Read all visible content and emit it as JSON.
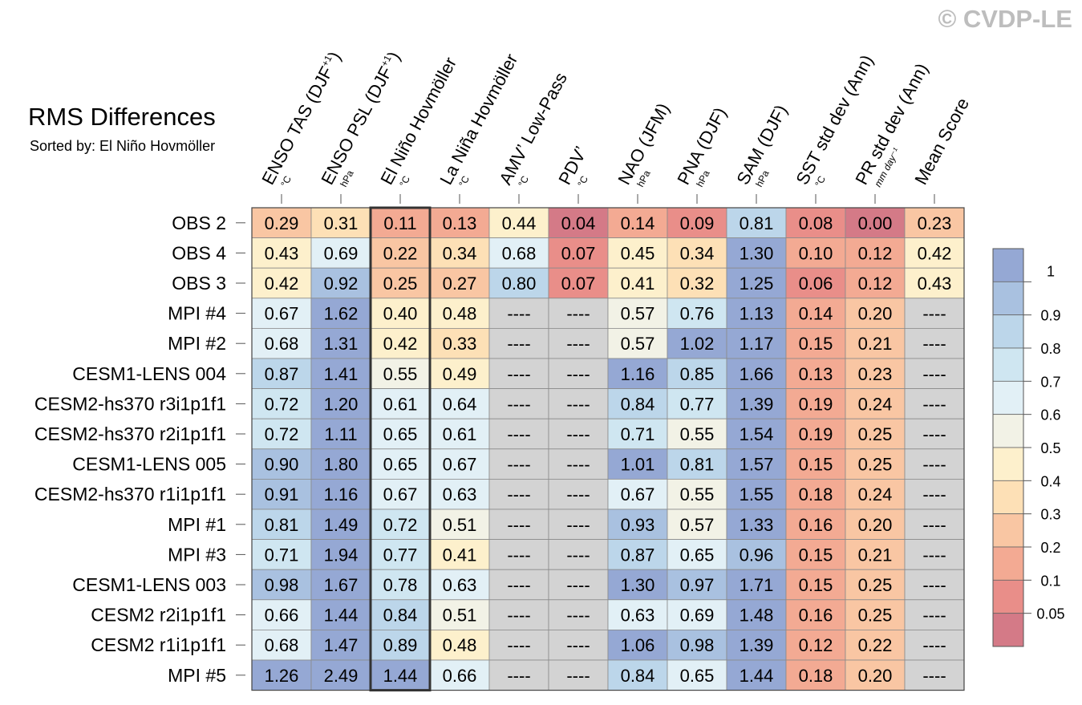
{
  "watermark": "© CVDP-LE",
  "chart_data": {
    "type": "heatmap",
    "title": "RMS Differences",
    "subtitle": "Sorted by: El Niño Hovmöller",
    "highlight_column": 2,
    "columns": [
      {
        "label": "ENSO TAS (DJF",
        "sup": "+1",
        "tail": ")",
        "unit": "°C"
      },
      {
        "label": "ENSO PSL (DJF",
        "sup": "+1",
        "tail": ")",
        "unit": "hPa"
      },
      {
        "label": "El Niño Hovmöller",
        "sup": "",
        "tail": "",
        "unit": "°C"
      },
      {
        "label": "La Niña Hovmöller",
        "sup": "",
        "tail": "",
        "unit": "°C"
      },
      {
        "label": "AMV’ Low-Pass",
        "sup": "",
        "tail": "",
        "unit": "°C"
      },
      {
        "label": "PDV’",
        "sup": "",
        "tail": "",
        "unit": "°C"
      },
      {
        "label": "NAO (JFM)",
        "sup": "",
        "tail": "",
        "unit": "hPa"
      },
      {
        "label": "PNA (DJF)",
        "sup": "",
        "tail": "",
        "unit": "hPa"
      },
      {
        "label": "SAM (DJF)",
        "sup": "",
        "tail": "",
        "unit": "hPa"
      },
      {
        "label": "SST std dev (Ann)",
        "sup": "",
        "tail": "",
        "unit": "°C"
      },
      {
        "label": "PR std dev (Ann)",
        "sup": "",
        "tail": "",
        "unit": "mm day⁻¹"
      },
      {
        "label": "Mean Score",
        "sup": "",
        "tail": "",
        "unit": ""
      }
    ],
    "rows": [
      {
        "name": "OBS 2",
        "values": [
          "0.29",
          "0.31",
          "0.11",
          "0.13",
          "0.44",
          "0.04",
          "0.14",
          "0.09",
          "0.81",
          "0.08",
          "0.00",
          "0.23"
        ]
      },
      {
        "name": "OBS 4",
        "values": [
          "0.43",
          "0.69",
          "0.22",
          "0.34",
          "0.68",
          "0.07",
          "0.45",
          "0.34",
          "1.30",
          "0.10",
          "0.12",
          "0.42"
        ]
      },
      {
        "name": "OBS 3",
        "values": [
          "0.42",
          "0.92",
          "0.25",
          "0.27",
          "0.80",
          "0.07",
          "0.41",
          "0.32",
          "1.25",
          "0.06",
          "0.12",
          "0.43"
        ]
      },
      {
        "name": "MPI #4",
        "values": [
          "0.67",
          "1.62",
          "0.40",
          "0.48",
          "----",
          "----",
          "0.57",
          "0.76",
          "1.13",
          "0.14",
          "0.20",
          "----"
        ]
      },
      {
        "name": "MPI #2",
        "values": [
          "0.68",
          "1.31",
          "0.42",
          "0.33",
          "----",
          "----",
          "0.57",
          "1.02",
          "1.17",
          "0.15",
          "0.21",
          "----"
        ]
      },
      {
        "name": "CESM1-LENS 004",
        "values": [
          "0.87",
          "1.41",
          "0.55",
          "0.49",
          "----",
          "----",
          "1.16",
          "0.85",
          "1.66",
          "0.13",
          "0.23",
          "----"
        ]
      },
      {
        "name": "CESM2-hs370 r3i1p1f1",
        "values": [
          "0.72",
          "1.20",
          "0.61",
          "0.64",
          "----",
          "----",
          "0.84",
          "0.77",
          "1.39",
          "0.19",
          "0.24",
          "----"
        ]
      },
      {
        "name": "CESM2-hs370 r2i1p1f1",
        "values": [
          "0.72",
          "1.11",
          "0.65",
          "0.61",
          "----",
          "----",
          "0.71",
          "0.55",
          "1.54",
          "0.19",
          "0.25",
          "----"
        ]
      },
      {
        "name": "CESM1-LENS 005",
        "values": [
          "0.90",
          "1.80",
          "0.65",
          "0.67",
          "----",
          "----",
          "1.01",
          "0.81",
          "1.57",
          "0.15",
          "0.25",
          "----"
        ]
      },
      {
        "name": "CESM2-hs370 r1i1p1f1",
        "values": [
          "0.91",
          "1.16",
          "0.67",
          "0.63",
          "----",
          "----",
          "0.67",
          "0.55",
          "1.55",
          "0.18",
          "0.24",
          "----"
        ]
      },
      {
        "name": "MPI #1",
        "values": [
          "0.81",
          "1.49",
          "0.72",
          "0.51",
          "----",
          "----",
          "0.93",
          "0.57",
          "1.33",
          "0.16",
          "0.20",
          "----"
        ]
      },
      {
        "name": "MPI #3",
        "values": [
          "0.71",
          "1.94",
          "0.77",
          "0.41",
          "----",
          "----",
          "0.87",
          "0.65",
          "0.96",
          "0.15",
          "0.21",
          "----"
        ]
      },
      {
        "name": "CESM1-LENS 003",
        "values": [
          "0.98",
          "1.67",
          "0.78",
          "0.63",
          "----",
          "----",
          "1.30",
          "0.97",
          "1.71",
          "0.15",
          "0.25",
          "----"
        ]
      },
      {
        "name": "CESM2 r2i1p1f1",
        "values": [
          "0.66",
          "1.44",
          "0.84",
          "0.51",
          "----",
          "----",
          "0.63",
          "0.69",
          "1.48",
          "0.16",
          "0.25",
          "----"
        ]
      },
      {
        "name": "CESM2 r1i1p1f1",
        "values": [
          "0.68",
          "1.47",
          "0.89",
          "0.48",
          "----",
          "----",
          "1.06",
          "0.98",
          "1.39",
          "0.12",
          "0.22",
          "----"
        ]
      },
      {
        "name": "MPI #5",
        "values": [
          "1.26",
          "2.49",
          "1.44",
          "0.66",
          "----",
          "----",
          "0.84",
          "0.65",
          "1.44",
          "0.18",
          "0.20",
          "----"
        ]
      }
    ],
    "missing_color": "#d3d3d3",
    "colorbar": {
      "ticks": [
        "1",
        "0.9",
        "0.8",
        "0.7",
        "0.6",
        "0.5",
        "0.4",
        "0.3",
        "0.2",
        "0.1",
        "0.05"
      ],
      "bins": [
        {
          "min": 1.0,
          "color": "#95a8d4"
        },
        {
          "min": 0.9,
          "color": "#a9c1e0"
        },
        {
          "min": 0.8,
          "color": "#bcd6ea"
        },
        {
          "min": 0.7,
          "color": "#cfe6f1"
        },
        {
          "min": 0.6,
          "color": "#e2f0f6"
        },
        {
          "min": 0.5,
          "color": "#f2f2e6"
        },
        {
          "min": 0.4,
          "color": "#fdf0cc"
        },
        {
          "min": 0.3,
          "color": "#fde0b6"
        },
        {
          "min": 0.2,
          "color": "#f9c6a3"
        },
        {
          "min": 0.1,
          "color": "#f3aa93"
        },
        {
          "min": 0.05,
          "color": "#e98e89"
        },
        {
          "min": 0.0,
          "color": "#d47a87"
        }
      ]
    }
  }
}
